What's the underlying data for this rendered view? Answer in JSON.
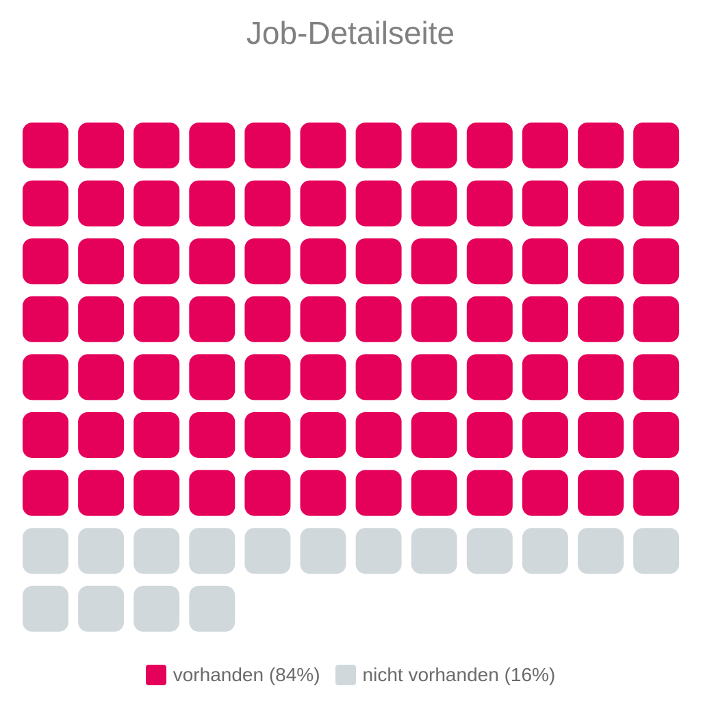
{
  "chart_data": {
    "type": "waffle",
    "title": "Job-Detailseite",
    "total": 100,
    "columns": 12,
    "series": [
      {
        "name": "vorhanden (84%)",
        "value": 84,
        "color": "#e5005a"
      },
      {
        "name": "nicht vorhanden (16%)",
        "value": 16,
        "color": "#d1d8db"
      }
    ],
    "legend_position": "bottom"
  }
}
